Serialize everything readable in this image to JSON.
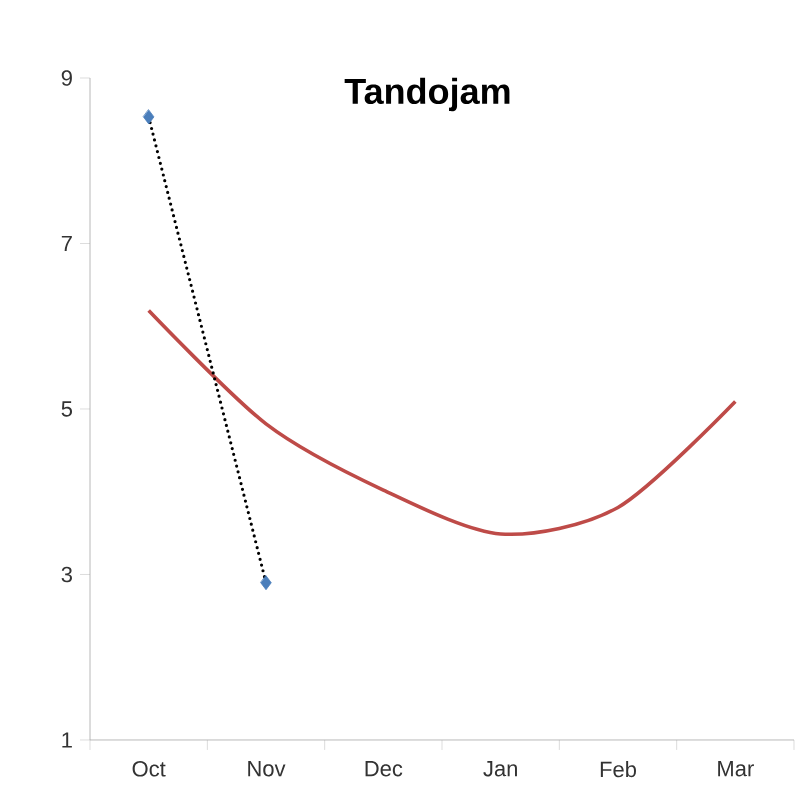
{
  "chart_data": {
    "type": "line",
    "title": "Tandojam",
    "categories": [
      "Oct",
      "Nov",
      "Dec",
      "Jan",
      "Feb",
      "Mar"
    ],
    "series": [
      {
        "color": "#be4b48",
        "values": [
          6.19,
          4.82,
          4.02,
          3.49,
          3.81,
          5.09
        ],
        "marker": "none",
        "line_style": "solid"
      },
      {
        "color": "#4a7ebb",
        "values": [
          8.53,
          2.9,
          null,
          null,
          null,
          null
        ],
        "marker": "diamond",
        "line_style": "dotted"
      }
    ],
    "ylim": [
      1,
      9
    ],
    "yticks": [
      1,
      3,
      5,
      7,
      9
    ]
  }
}
